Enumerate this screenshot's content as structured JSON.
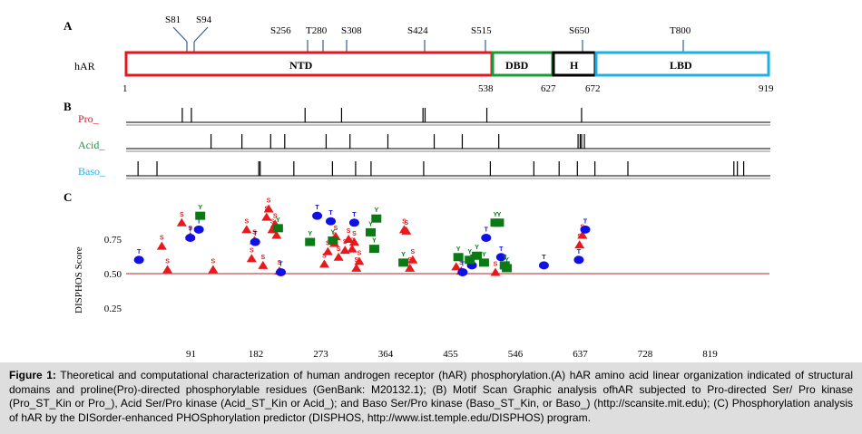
{
  "panels": {
    "a": {
      "letter": "A",
      "protein_label": "hAR",
      "sites": [
        "S81",
        "S94",
        "S256",
        "T280",
        "S308",
        "S424",
        "S515",
        "S650",
        "T800"
      ],
      "domains": [
        {
          "label": "NTD",
          "start": 1,
          "end": 538,
          "color": "#e0191e"
        },
        {
          "label": "DBD",
          "start": 538,
          "end": 627,
          "color": "#1a9d36"
        },
        {
          "label": "H",
          "start": 627,
          "end": 672,
          "color": "#000000"
        },
        {
          "label": "LBD",
          "start": 672,
          "end": 919,
          "color": "#1fb1e6"
        }
      ],
      "positions": [
        "1",
        "538",
        "627",
        "672",
        "919"
      ]
    },
    "b": {
      "letter": "B",
      "tracks": [
        {
          "label": "Pro_",
          "color": "#e0191e",
          "sites": [
            81,
            94,
            256,
            308,
            424,
            427,
            515,
            650
          ]
        },
        {
          "label": "Acid_",
          "color": "#1a9d36",
          "sites": [
            122,
            166,
            207,
            227,
            286,
            320,
            374,
            440,
            480,
            532,
            645,
            648,
            650,
            654
          ]
        },
        {
          "label": "Baso_",
          "color": "#1fb1e6",
          "sites": [
            18,
            45,
            190,
            192,
            240,
            295,
            328,
            350,
            425,
            520,
            582,
            618,
            644,
            669,
            716,
            867,
            872,
            881
          ]
        }
      ]
    },
    "c": {
      "letter": "C",
      "ylabel": "DISPHOS Score",
      "xticks": [
        "91",
        "182",
        "273",
        "364",
        "455",
        "546",
        "637",
        "728",
        "819"
      ],
      "yticks": [
        "0.25",
        "0.50",
        "0.75"
      ]
    }
  },
  "chart_data": {
    "type": "scatter",
    "ylabel": "DISPHOS Score",
    "xticks": [
      91,
      182,
      273,
      364,
      455,
      546,
      637,
      728,
      819
    ],
    "yticks": [
      0.25,
      0.5,
      0.75
    ],
    "xlim": [
      0,
      910
    ],
    "ylim": [
      0.0,
      1.0
    ],
    "threshold": 0.5,
    "threshold_color": "#c45050",
    "series": [
      {
        "label": "S",
        "marker": "triangle",
        "color": "#e8181c",
        "points": [
          [
            50,
            0.7
          ],
          [
            58,
            0.53
          ],
          [
            78,
            0.87
          ],
          [
            90,
            0.77
          ],
          [
            122,
            0.53
          ],
          [
            169,
            0.82
          ],
          [
            176,
            0.61
          ],
          [
            180,
            0.74
          ],
          [
            192,
            0.56
          ],
          [
            197,
            0.91
          ],
          [
            200,
            0.97
          ],
          [
            205,
            0.82
          ],
          [
            209,
            0.86
          ],
          [
            211,
            0.78
          ],
          [
            215,
            0.52
          ],
          [
            278,
            0.57
          ],
          [
            283,
            0.66
          ],
          [
            292,
            0.72
          ],
          [
            294,
            0.77
          ],
          [
            298,
            0.62
          ],
          [
            307,
            0.67
          ],
          [
            312,
            0.75
          ],
          [
            317,
            0.68
          ],
          [
            320,
            0.73
          ],
          [
            323,
            0.54
          ],
          [
            327,
            0.59
          ],
          [
            390,
            0.82
          ],
          [
            393,
            0.81
          ],
          [
            398,
            0.54
          ],
          [
            402,
            0.6
          ],
          [
            463,
            0.55
          ],
          [
            470,
            0.52
          ],
          [
            518,
            0.51
          ],
          [
            636,
            0.71
          ],
          [
            640,
            0.78
          ]
        ]
      },
      {
        "label": "T",
        "marker": "circle",
        "color": "#1010e6",
        "points": [
          [
            18,
            0.6
          ],
          [
            90,
            0.76
          ],
          [
            102,
            0.82
          ],
          [
            181,
            0.73
          ],
          [
            217,
            0.51
          ],
          [
            268,
            0.92
          ],
          [
            287,
            0.88
          ],
          [
            320,
            0.87
          ],
          [
            472,
            0.51
          ],
          [
            485,
            0.56
          ],
          [
            505,
            0.76
          ],
          [
            526,
            0.62
          ],
          [
            586,
            0.56
          ],
          [
            635,
            0.6
          ],
          [
            644,
            0.82
          ]
        ]
      },
      {
        "label": "Y",
        "marker": "square",
        "color": "#0a7a14",
        "points": [
          [
            104,
            0.92
          ],
          [
            213,
            0.83
          ],
          [
            258,
            0.73
          ],
          [
            290,
            0.74
          ],
          [
            343,
            0.8
          ],
          [
            348,
            0.68
          ],
          [
            351,
            0.9
          ],
          [
            389,
            0.58
          ],
          [
            466,
            0.62
          ],
          [
            482,
            0.6
          ],
          [
            492,
            0.63
          ],
          [
            502,
            0.58
          ],
          [
            518,
            0.87
          ],
          [
            523,
            0.87
          ],
          [
            531,
            0.56
          ],
          [
            534,
            0.54
          ]
        ]
      }
    ]
  },
  "caption": {
    "prefix": "Figure 1:",
    "text": "Theoretical and computational characterization of human androgen receptor (hAR) phosphorylation.(A) hAR amino acid linear organization indicated of structural domains and proline(Pro)-directed phosphorylable residues (GenBank: M20132.1); (B) Motif Scan Graphic analysis ofhAR subjected to Pro-directed Ser/ Pro kinase (Pro_ST_Kin or Pro_), Acid Ser/Pro kinase (Acid_ST_Kin or Acid_); and Baso Ser/Pro kinase (Baso_ST_Kin, or Baso_) (http://scansite.mit.edu); (C) Phosphorylation analysis of hAR by the DISorder-enhanced PHOSphorylation predictor (DISPHOS, http://www.ist.temple.edu/DISPHOS) program."
  }
}
